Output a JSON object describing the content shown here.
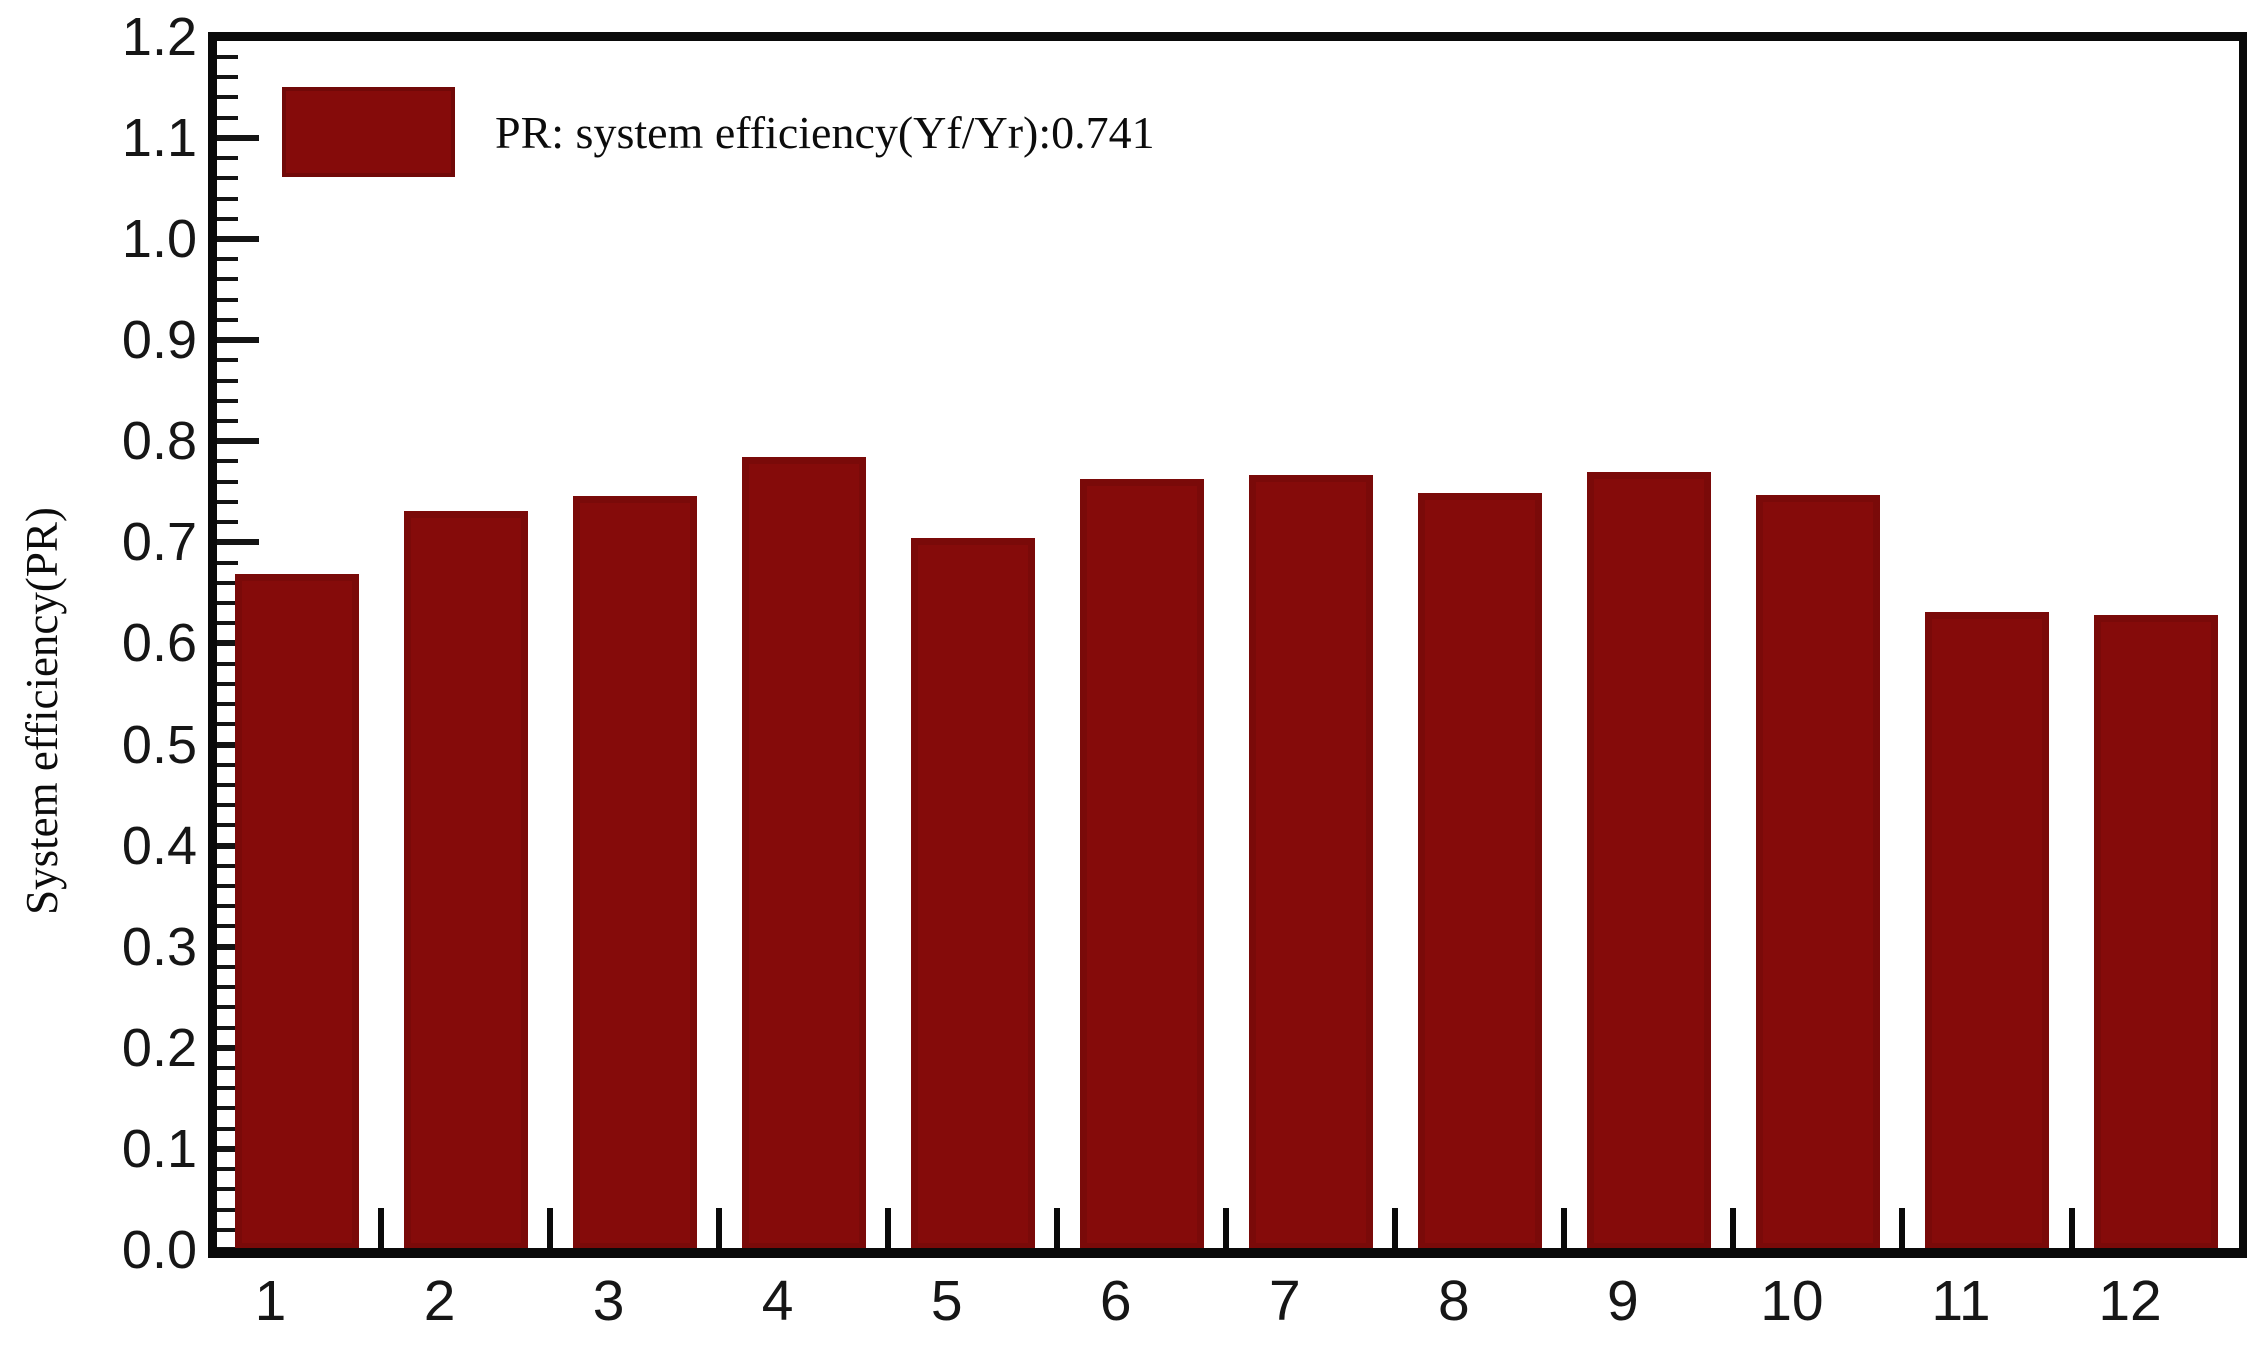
{
  "chart_data": {
    "type": "bar",
    "title": "",
    "xlabel": "",
    "ylabel": "System efficiency(PR)",
    "legend": "PR: system efficiency(Yf/Yr):0.741",
    "legend_position": "top-left",
    "grid": false,
    "categories": [
      "1",
      "2",
      "3",
      "4",
      "5",
      "6",
      "7",
      "8",
      "9",
      "10",
      "11",
      "12"
    ],
    "series": [
      {
        "name": "PR",
        "values": [
          0.669,
          0.731,
          0.746,
          0.784,
          0.704,
          0.763,
          0.767,
          0.749,
          0.77,
          0.747,
          0.631,
          0.628
        ]
      }
    ],
    "ylim": [
      0.0,
      1.2
    ],
    "ytick_step": 0.1,
    "y_minor_tick_step": 0.02,
    "ytick_labels": [
      "0.0",
      "0.1",
      "0.2",
      "0.3",
      "0.4",
      "0.5",
      "0.6",
      "0.7",
      "0.8",
      "0.9",
      "1.0",
      "1.1",
      "1.2"
    ],
    "bar_color": "#850b0a",
    "axis_color": "#0a0a0a"
  }
}
